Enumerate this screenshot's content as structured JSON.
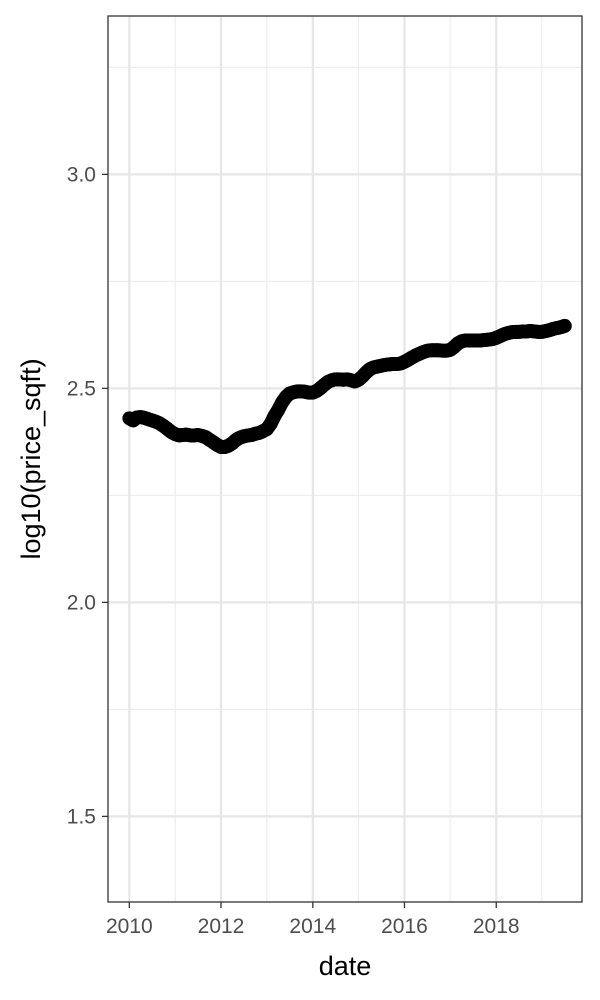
{
  "chart_data": {
    "type": "scatter",
    "title": "",
    "xlabel": "date",
    "ylabel": "log10(price_sqft)",
    "x_axis_type": "date",
    "xlim": [
      "2009-07-15",
      "2019-11-15"
    ],
    "ylim": [
      1.3,
      3.37
    ],
    "x_major_ticks": [
      "2010-01-01",
      "2012-01-01",
      "2014-01-01",
      "2016-01-01",
      "2018-01-01"
    ],
    "x_tick_labels": [
      "2010",
      "2012",
      "2014",
      "2016",
      "2018"
    ],
    "y_major_ticks": [
      1.5,
      2.0,
      2.5,
      3.0
    ],
    "y_tick_labels": [
      "1.5",
      "2.0",
      "2.5",
      "3.0"
    ],
    "grid": true,
    "legend": "none",
    "point_color": "#000000",
    "series": [
      {
        "x": [
          "2010-01-01",
          "2010-02-01",
          "2010-03-01",
          "2010-04-01",
          "2010-05-01",
          "2010-06-01",
          "2010-07-01",
          "2010-08-01",
          "2010-09-01",
          "2010-10-01",
          "2010-11-01",
          "2010-12-01",
          "2011-01-01",
          "2011-02-01",
          "2011-03-01",
          "2011-04-01",
          "2011-05-01",
          "2011-06-01",
          "2011-07-01",
          "2011-08-01",
          "2011-09-01",
          "2011-10-01",
          "2011-11-01",
          "2011-12-01",
          "2012-01-01",
          "2012-02-01",
          "2012-03-01",
          "2012-04-01",
          "2012-05-01",
          "2012-06-01",
          "2012-07-01",
          "2012-08-01",
          "2012-09-01",
          "2012-10-01",
          "2012-11-01",
          "2012-12-01",
          "2013-01-01",
          "2013-02-01",
          "2013-03-01",
          "2013-04-01",
          "2013-05-01",
          "2013-06-01",
          "2013-07-01",
          "2013-08-01",
          "2013-09-01",
          "2013-10-01",
          "2013-11-01",
          "2013-12-01",
          "2014-01-01",
          "2014-02-01",
          "2014-03-01",
          "2014-04-01",
          "2014-05-01",
          "2014-06-01",
          "2014-07-01",
          "2014-08-01",
          "2014-09-01",
          "2014-10-01",
          "2014-11-01",
          "2014-12-01",
          "2015-01-01",
          "2015-02-01",
          "2015-03-01",
          "2015-04-01",
          "2015-05-01",
          "2015-06-01",
          "2015-07-01",
          "2015-08-01",
          "2015-09-01",
          "2015-10-01",
          "2015-11-01",
          "2015-12-01",
          "2016-01-01",
          "2016-02-01",
          "2016-03-01",
          "2016-04-01",
          "2016-05-01",
          "2016-06-01",
          "2016-07-01",
          "2016-08-01",
          "2016-09-01",
          "2016-10-01",
          "2016-11-01",
          "2016-12-01",
          "2017-01-01",
          "2017-02-01",
          "2017-03-01",
          "2017-04-01",
          "2017-05-01",
          "2017-06-01",
          "2017-07-01",
          "2017-08-01",
          "2017-09-01",
          "2017-10-01",
          "2017-11-01",
          "2017-12-01",
          "2018-01-01",
          "2018-02-01",
          "2018-03-01",
          "2018-04-01",
          "2018-05-01",
          "2018-06-01",
          "2018-07-01",
          "2018-08-01",
          "2018-09-01",
          "2018-10-01",
          "2018-11-01",
          "2018-12-01",
          "2019-01-01",
          "2019-02-01",
          "2019-03-01",
          "2019-04-01",
          "2019-05-01",
          "2019-06-01",
          "2019-07-01"
        ],
        "y": [
          2.43,
          2.425,
          2.432,
          2.433,
          2.431,
          2.428,
          2.425,
          2.422,
          2.418,
          2.412,
          2.405,
          2.398,
          2.393,
          2.39,
          2.391,
          2.392,
          2.39,
          2.39,
          2.391,
          2.389,
          2.386,
          2.38,
          2.374,
          2.368,
          2.363,
          2.363,
          2.366,
          2.372,
          2.38,
          2.385,
          2.388,
          2.39,
          2.391,
          2.394,
          2.396,
          2.4,
          2.405,
          2.418,
          2.435,
          2.45,
          2.467,
          2.48,
          2.488,
          2.491,
          2.493,
          2.493,
          2.492,
          2.49,
          2.49,
          2.494,
          2.5,
          2.508,
          2.515,
          2.519,
          2.521,
          2.521,
          2.52,
          2.521,
          2.519,
          2.516,
          2.52,
          2.528,
          2.537,
          2.545,
          2.549,
          2.551,
          2.553,
          2.555,
          2.556,
          2.557,
          2.557,
          2.558,
          2.562,
          2.567,
          2.572,
          2.577,
          2.581,
          2.585,
          2.588,
          2.589,
          2.589,
          2.589,
          2.588,
          2.588,
          2.59,
          2.597,
          2.605,
          2.61,
          2.612,
          2.612,
          2.612,
          2.612,
          2.612,
          2.613,
          2.614,
          2.615,
          2.618,
          2.622,
          2.626,
          2.629,
          2.631,
          2.632,
          2.632,
          2.633,
          2.633,
          2.634,
          2.633,
          2.632,
          2.632,
          2.634,
          2.636,
          2.639,
          2.641,
          2.643,
          2.646
        ]
      }
    ]
  }
}
